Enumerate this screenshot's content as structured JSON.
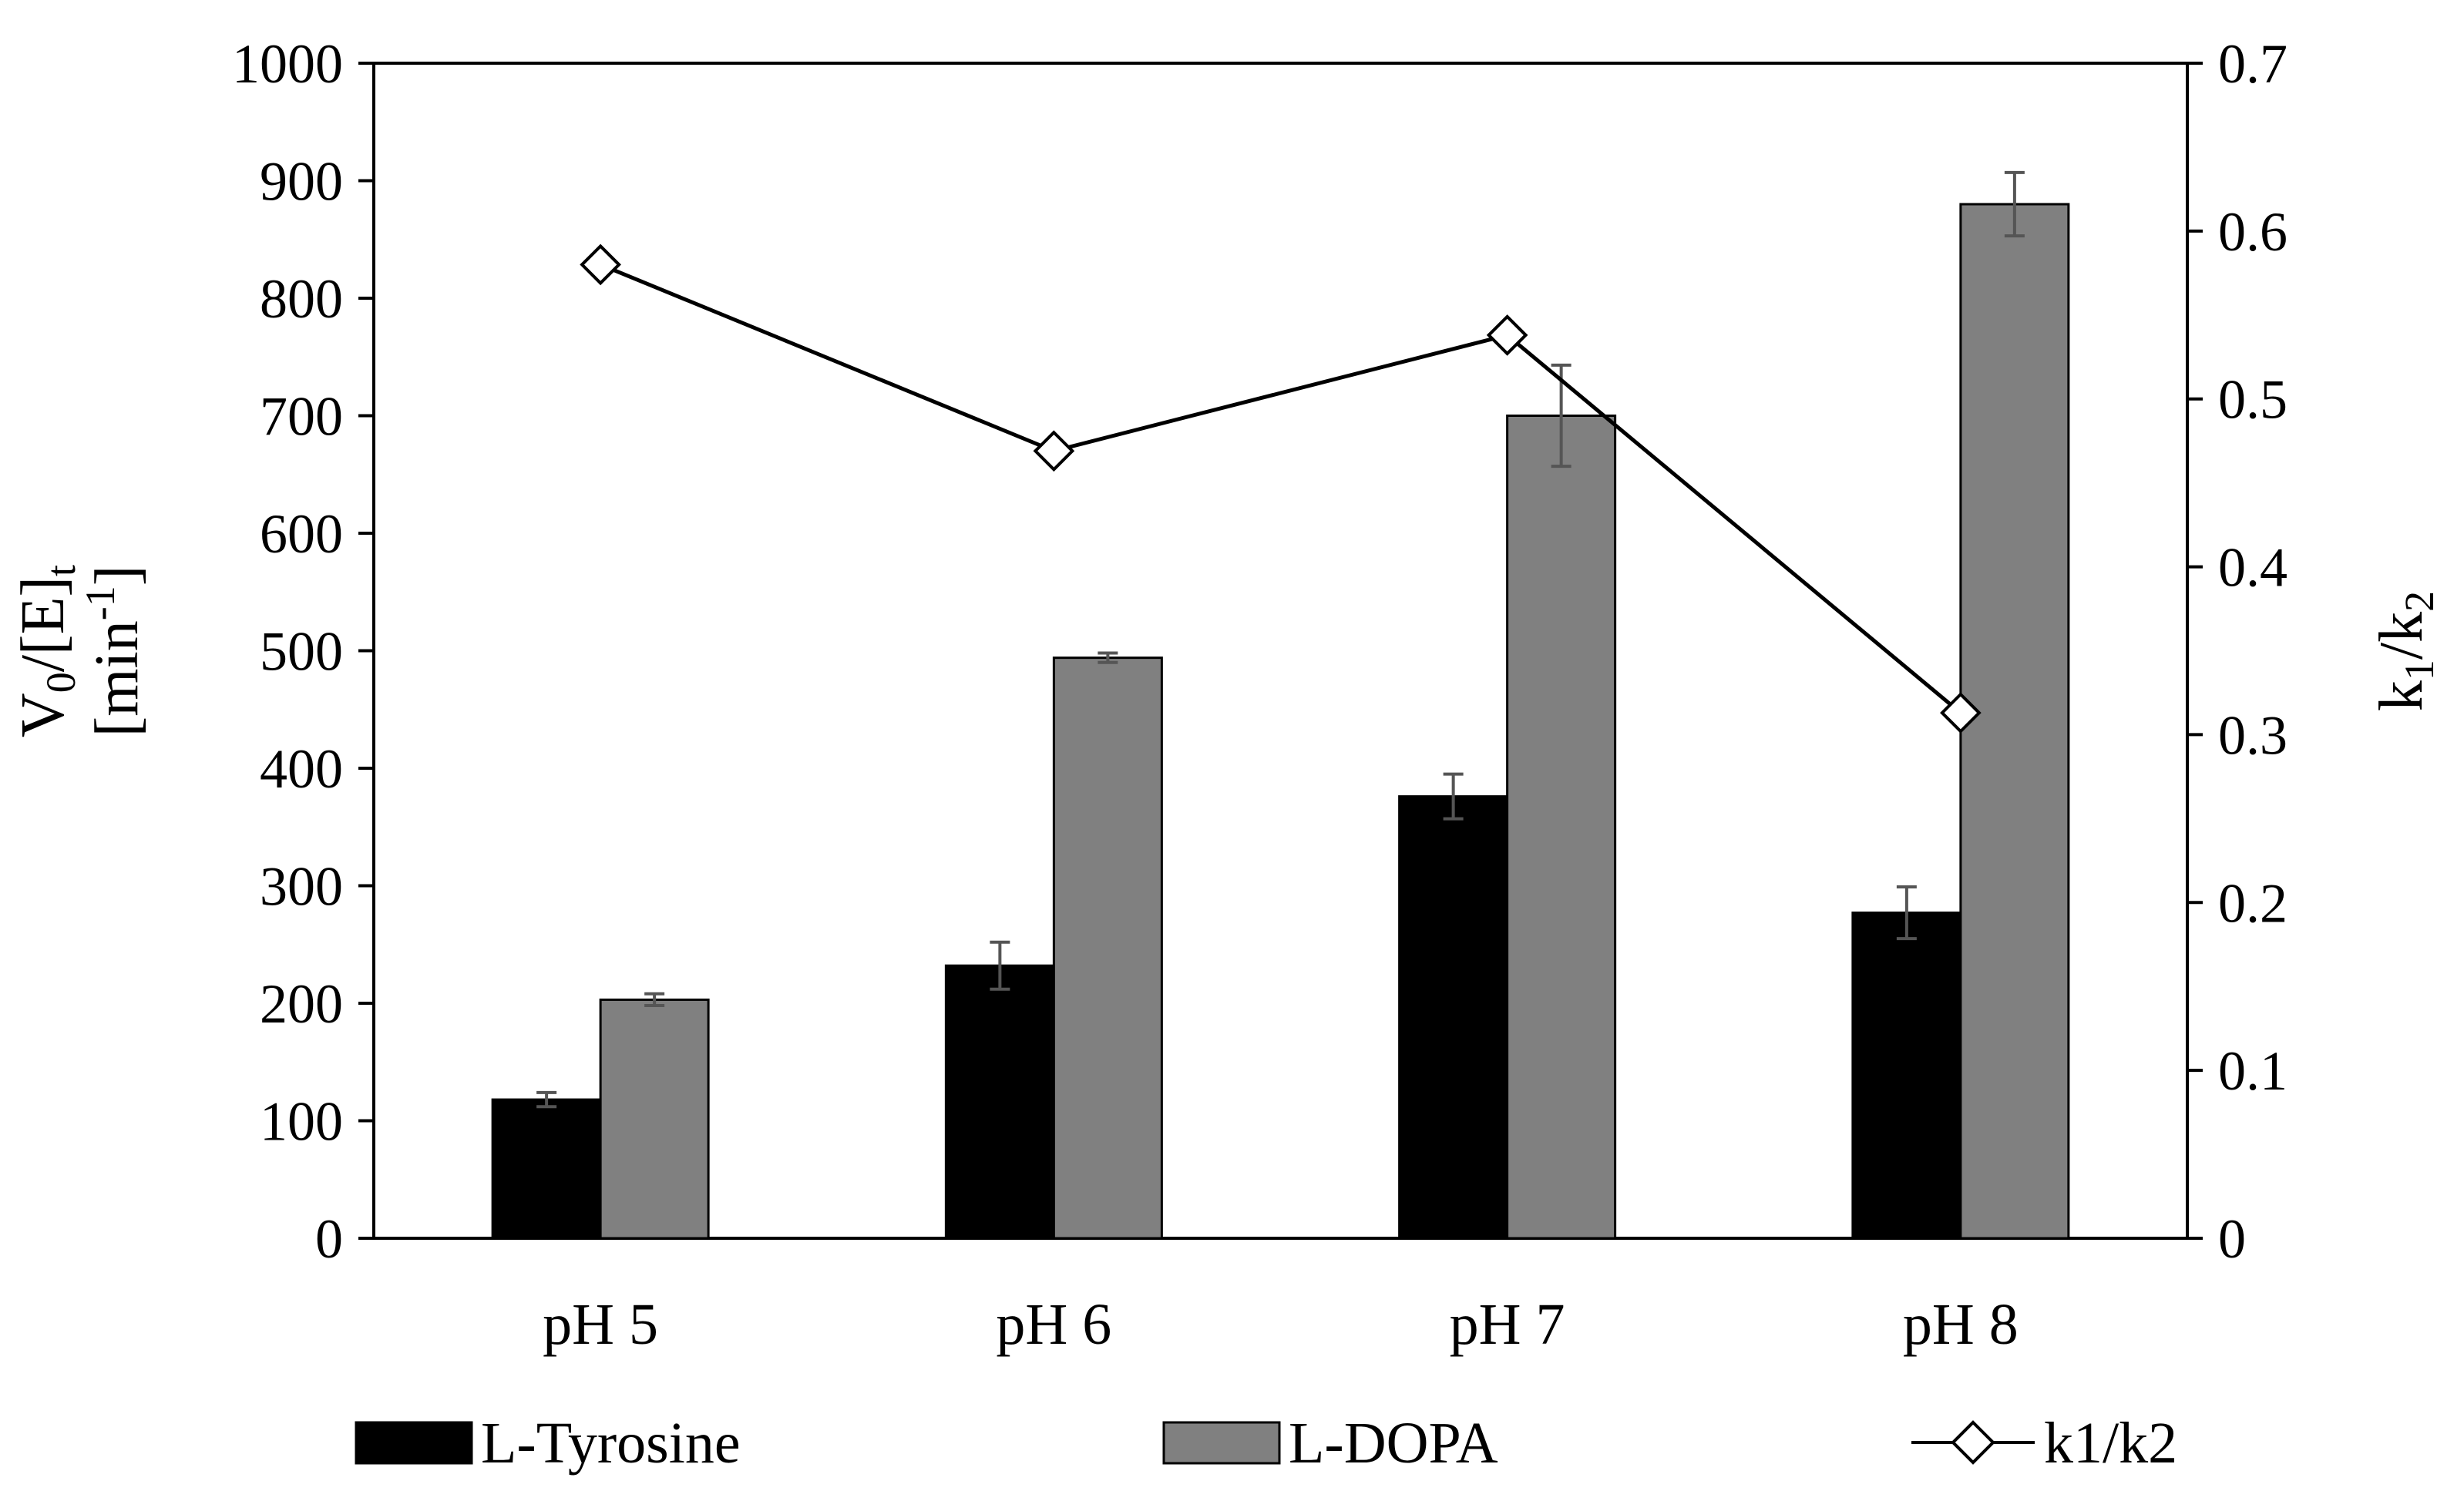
{
  "chart_data": {
    "type": "bar",
    "categories": [
      "pH 5",
      "pH 6",
      "pH 7",
      "pH 8"
    ],
    "series": [
      {
        "name": "L-Tyrosine",
        "kind": "bar",
        "axis": "left",
        "color": "#000000",
        "values": [
          118,
          232,
          376,
          277
        ],
        "errors": [
          6,
          20,
          19,
          22
        ]
      },
      {
        "name": "L-DOPA",
        "kind": "bar",
        "axis": "left",
        "color": "#808080",
        "values": [
          203,
          494,
          700,
          880
        ],
        "errors": [
          5,
          4,
          43,
          27
        ]
      },
      {
        "name": "k1/k2",
        "kind": "line",
        "axis": "right",
        "marker": "open-diamond",
        "color": "#000000",
        "values": [
          0.58,
          0.469,
          0.538,
          0.313
        ]
      }
    ],
    "y_left": {
      "label_main": "V",
      "label_sub0": "0",
      "label_mid": "/[E]",
      "label_subt": "t",
      "label_line2_pre": "[min",
      "label_line2_sup": "-1",
      "label_line2_post": "]",
      "range": [
        0,
        1000
      ],
      "ticks": [
        "0",
        "100",
        "200",
        "300",
        "400",
        "500",
        "600",
        "700",
        "800",
        "900",
        "1000"
      ]
    },
    "y_right": {
      "label_k": "k",
      "label_sub1": "1",
      "label_slash": "/k",
      "label_sub2": "2",
      "range": [
        0,
        0.7
      ],
      "ticks": [
        "0",
        "0.1",
        "0.2",
        "0.3",
        "0.4",
        "0.5",
        "0.6",
        "0.7"
      ]
    },
    "legend": {
      "position": "bottom",
      "items": [
        "L-Tyrosine",
        "L-DOPA",
        "k1/k2"
      ]
    },
    "grid": false
  }
}
